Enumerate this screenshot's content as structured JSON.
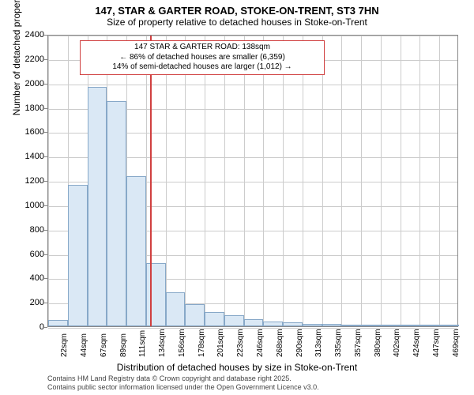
{
  "title": "147, STAR & GARTER ROAD, STOKE-ON-TRENT, ST3 7HN",
  "subtitle": "Size of property relative to detached houses in Stoke-on-Trent",
  "chart": {
    "type": "histogram",
    "ylabel": "Number of detached properties",
    "xlabel": "Distribution of detached houses by size in Stoke-on-Trent",
    "ylim": [
      0,
      2400
    ],
    "ytick_step": 200,
    "yticks": [
      0,
      200,
      400,
      600,
      800,
      1000,
      1200,
      1400,
      1600,
      1800,
      2000,
      2200,
      2400
    ],
    "categories": [
      "22sqm",
      "44sqm",
      "67sqm",
      "89sqm",
      "111sqm",
      "134sqm",
      "156sqm",
      "178sqm",
      "201sqm",
      "223sqm",
      "246sqm",
      "268sqm",
      "290sqm",
      "313sqm",
      "335sqm",
      "357sqm",
      "380sqm",
      "402sqm",
      "424sqm",
      "447sqm",
      "469sqm"
    ],
    "values": [
      50,
      1160,
      1965,
      1850,
      1230,
      520,
      280,
      180,
      120,
      90,
      60,
      40,
      30,
      20,
      20,
      15,
      10,
      8,
      5,
      5,
      3
    ],
    "bar_fill": "#dae8f5",
    "bar_border": "#87a8c8",
    "background_color": "#ffffff",
    "grid_color": "#cccccc",
    "axis_color": "#888888",
    "label_fontsize": 12,
    "tick_fontsize": 11,
    "title_fontsize": 13
  },
  "annotation": {
    "line1": "147 STAR & GARTER ROAD: 138sqm",
    "line2": "← 86% of detached houses are smaller (6,359)",
    "line3": "14% of semi-detached houses are larger (1,012) →",
    "value_sqm": 138,
    "border_color": "#d04040",
    "background_color": "#ffffff",
    "marker_color": "#d04040"
  },
  "footer": {
    "line1": "Contains HM Land Registry data © Crown copyright and database right 2025.",
    "line2": "Contains public sector information licensed under the Open Government Licence v3.0."
  }
}
